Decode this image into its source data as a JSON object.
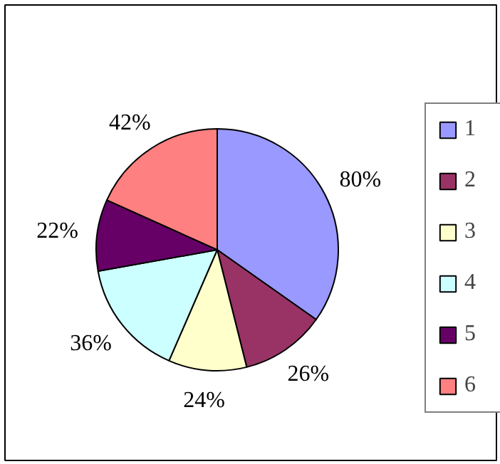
{
  "chart_data": {
    "type": "pie",
    "categories": [
      "1",
      "2",
      "3",
      "4",
      "5",
      "6"
    ],
    "values": [
      80,
      26,
      24,
      36,
      22,
      42
    ],
    "value_labels": [
      "80%",
      "26%",
      "24%",
      "36%",
      "22%",
      "42%"
    ],
    "colors": [
      "#9999ff",
      "#993366",
      "#ffffcc",
      "#ccffff",
      "#660066",
      "#ff8080"
    ],
    "legend": "right"
  }
}
